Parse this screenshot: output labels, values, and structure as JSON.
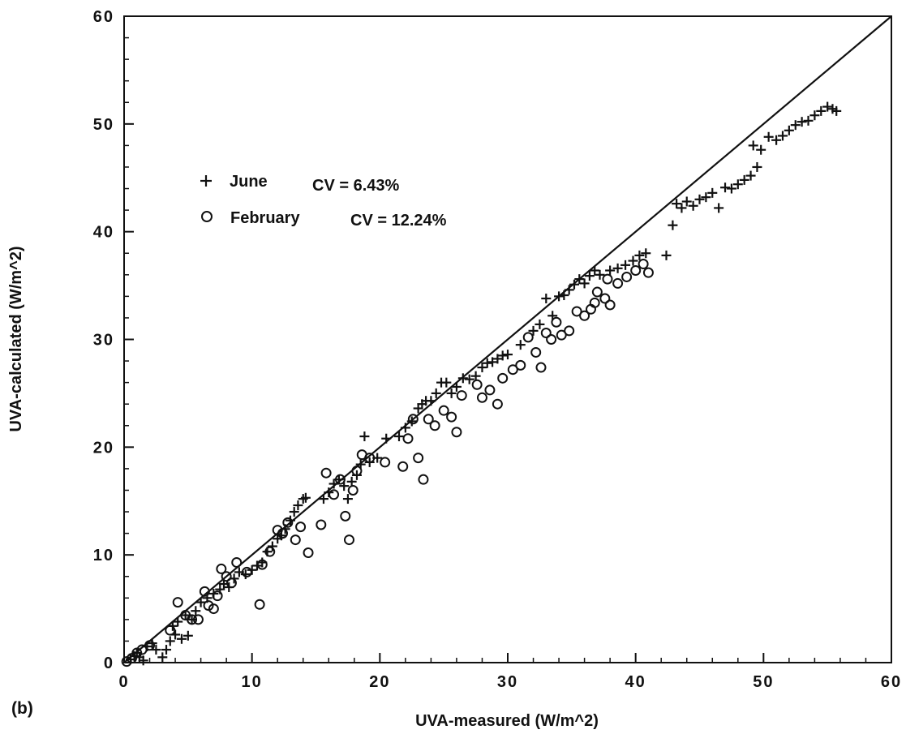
{
  "panel_label": "(b)",
  "chart_data": {
    "type": "scatter",
    "xlabel": "UVA-measured (W/m^2)",
    "ylabel": "UVA-calculated (W/m^2)",
    "xlim": [
      0,
      60
    ],
    "ylim": [
      0,
      60
    ],
    "xticks": [
      "0",
      "10",
      "20",
      "30",
      "40",
      "50",
      "60"
    ],
    "yticks": [
      "0",
      "10",
      "20",
      "30",
      "40",
      "50",
      "60"
    ],
    "reference_line": {
      "type": "1:1",
      "from": [
        0,
        0
      ],
      "to": [
        60,
        60
      ]
    },
    "legend": [
      {
        "marker": "+",
        "label": "June",
        "stat": "CV = 6.43%"
      },
      {
        "marker": "o",
        "label": "February",
        "stat": "CV = 12.24%"
      }
    ],
    "series": [
      {
        "name": "June",
        "marker": "plus",
        "points": [
          [
            0.5,
            0.3
          ],
          [
            0.8,
            0.6
          ],
          [
            1.0,
            0.9
          ],
          [
            1.2,
            0.5
          ],
          [
            1.5,
            0.2
          ],
          [
            1.8,
            1.5
          ],
          [
            2.2,
            1.8
          ],
          [
            2.5,
            1.2
          ],
          [
            3.0,
            0.5
          ],
          [
            3.3,
            1.2
          ],
          [
            3.6,
            2.0
          ],
          [
            3.8,
            3.4
          ],
          [
            4.0,
            2.6
          ],
          [
            4.2,
            3.8
          ],
          [
            4.5,
            2.2
          ],
          [
            4.8,
            4.4
          ],
          [
            5.0,
            2.5
          ],
          [
            5.3,
            4.0
          ],
          [
            5.6,
            4.8
          ],
          [
            6.0,
            5.6
          ],
          [
            6.5,
            6.0
          ],
          [
            7.0,
            6.4
          ],
          [
            7.5,
            6.8
          ],
          [
            7.8,
            7.3
          ],
          [
            8.2,
            7.0
          ],
          [
            8.6,
            7.8
          ],
          [
            9.0,
            8.4
          ],
          [
            9.5,
            8.2
          ],
          [
            10.0,
            8.6
          ],
          [
            10.4,
            9.0
          ],
          [
            10.8,
            9.3
          ],
          [
            11.2,
            10.3
          ],
          [
            11.6,
            10.8
          ],
          [
            12.0,
            11.5
          ],
          [
            12.3,
            11.8
          ],
          [
            12.6,
            12.4
          ],
          [
            13.0,
            13.2
          ],
          [
            13.3,
            14.0
          ],
          [
            13.6,
            14.6
          ],
          [
            14.0,
            15.2
          ],
          [
            14.2,
            15.3
          ],
          [
            15.6,
            15.2
          ],
          [
            16.0,
            15.8
          ],
          [
            16.4,
            16.6
          ],
          [
            16.8,
            17.0
          ],
          [
            17.2,
            16.4
          ],
          [
            17.5,
            15.2
          ],
          [
            17.8,
            16.8
          ],
          [
            18.2,
            17.4
          ],
          [
            18.5,
            18.4
          ],
          [
            18.8,
            21.0
          ],
          [
            19.2,
            18.6
          ],
          [
            19.8,
            19.0
          ],
          [
            20.5,
            20.8
          ],
          [
            21.5,
            21.0
          ],
          [
            22.0,
            21.8
          ],
          [
            22.5,
            22.4
          ],
          [
            23.0,
            23.6
          ],
          [
            23.3,
            24.0
          ],
          [
            23.6,
            24.3
          ],
          [
            24.0,
            24.3
          ],
          [
            24.4,
            25.0
          ],
          [
            24.8,
            26.0
          ],
          [
            25.2,
            26.0
          ],
          [
            25.6,
            25.0
          ],
          [
            26.0,
            25.6
          ],
          [
            26.5,
            26.4
          ],
          [
            27.0,
            26.3
          ],
          [
            27.5,
            26.6
          ],
          [
            28.0,
            27.4
          ],
          [
            28.4,
            27.8
          ],
          [
            28.8,
            27.9
          ],
          [
            29.2,
            28.2
          ],
          [
            29.6,
            28.5
          ],
          [
            30.0,
            28.6
          ],
          [
            31.0,
            29.5
          ],
          [
            32.0,
            30.8
          ],
          [
            32.5,
            31.4
          ],
          [
            33.0,
            33.8
          ],
          [
            33.5,
            32.2
          ],
          [
            34.0,
            34.0
          ],
          [
            34.4,
            34.1
          ],
          [
            34.8,
            34.6
          ],
          [
            35.2,
            35.1
          ],
          [
            35.6,
            35.6
          ],
          [
            36.0,
            35.2
          ],
          [
            36.4,
            35.9
          ],
          [
            36.8,
            36.4
          ],
          [
            37.2,
            36.0
          ],
          [
            38.0,
            36.4
          ],
          [
            38.6,
            36.6
          ],
          [
            39.2,
            36.9
          ],
          [
            39.8,
            37.3
          ],
          [
            40.3,
            37.8
          ],
          [
            40.8,
            38.0
          ],
          [
            42.4,
            37.8
          ],
          [
            42.9,
            40.6
          ],
          [
            43.2,
            42.6
          ],
          [
            43.6,
            42.2
          ],
          [
            44.0,
            42.8
          ],
          [
            44.5,
            42.4
          ],
          [
            45.0,
            43.0
          ],
          [
            45.5,
            43.2
          ],
          [
            46.0,
            43.6
          ],
          [
            46.5,
            42.2
          ],
          [
            47.0,
            44.1
          ],
          [
            47.5,
            44.0
          ],
          [
            48.0,
            44.4
          ],
          [
            48.5,
            44.8
          ],
          [
            49.0,
            45.2
          ],
          [
            49.5,
            46.0
          ],
          [
            49.2,
            48.0
          ],
          [
            49.8,
            47.6
          ],
          [
            50.4,
            48.8
          ],
          [
            51.0,
            48.5
          ],
          [
            51.5,
            48.9
          ],
          [
            52.0,
            49.4
          ],
          [
            52.5,
            49.9
          ],
          [
            53.0,
            50.2
          ],
          [
            53.5,
            50.3
          ],
          [
            54.0,
            50.8
          ],
          [
            54.5,
            51.2
          ],
          [
            55.0,
            51.6
          ],
          [
            55.4,
            51.4
          ],
          [
            55.7,
            51.2
          ]
        ]
      },
      {
        "name": "February",
        "marker": "circle",
        "points": [
          [
            0.2,
            0.1
          ],
          [
            0.6,
            0.4
          ],
          [
            1.0,
            0.9
          ],
          [
            1.4,
            1.2
          ],
          [
            2.0,
            1.6
          ],
          [
            3.6,
            3.0
          ],
          [
            4.2,
            5.6
          ],
          [
            4.8,
            4.4
          ],
          [
            5.3,
            4.0
          ],
          [
            5.8,
            4.0
          ],
          [
            6.3,
            6.6
          ],
          [
            6.6,
            5.3
          ],
          [
            7.0,
            5.0
          ],
          [
            7.3,
            6.2
          ],
          [
            7.6,
            8.7
          ],
          [
            8.0,
            8.0
          ],
          [
            8.4,
            7.4
          ],
          [
            8.8,
            9.3
          ],
          [
            9.6,
            8.4
          ],
          [
            10.6,
            5.4
          ],
          [
            10.8,
            9.1
          ],
          [
            11.4,
            10.3
          ],
          [
            12.0,
            12.3
          ],
          [
            12.4,
            12.0
          ],
          [
            12.8,
            13.0
          ],
          [
            13.4,
            11.4
          ],
          [
            13.8,
            12.6
          ],
          [
            14.4,
            10.2
          ],
          [
            15.4,
            12.8
          ],
          [
            15.8,
            17.6
          ],
          [
            16.4,
            15.6
          ],
          [
            16.9,
            17.0
          ],
          [
            17.3,
            13.6
          ],
          [
            17.6,
            11.4
          ],
          [
            17.9,
            16.0
          ],
          [
            18.2,
            17.8
          ],
          [
            18.6,
            19.3
          ],
          [
            19.2,
            19.0
          ],
          [
            20.4,
            18.6
          ],
          [
            21.8,
            18.2
          ],
          [
            22.2,
            20.8
          ],
          [
            22.6,
            22.6
          ],
          [
            23.0,
            19.0
          ],
          [
            23.4,
            17.0
          ],
          [
            23.8,
            22.6
          ],
          [
            24.3,
            22.0
          ],
          [
            25.0,
            23.4
          ],
          [
            25.6,
            22.8
          ],
          [
            26.0,
            21.4
          ],
          [
            26.4,
            24.8
          ],
          [
            27.6,
            25.8
          ],
          [
            28.0,
            24.6
          ],
          [
            28.6,
            25.3
          ],
          [
            29.2,
            24.0
          ],
          [
            29.6,
            26.4
          ],
          [
            30.4,
            27.2
          ],
          [
            31.0,
            27.6
          ],
          [
            31.6,
            30.2
          ],
          [
            32.2,
            28.8
          ],
          [
            32.6,
            27.4
          ],
          [
            33.0,
            30.6
          ],
          [
            33.4,
            30.0
          ],
          [
            33.8,
            31.6
          ],
          [
            34.2,
            30.4
          ],
          [
            34.8,
            30.8
          ],
          [
            35.4,
            32.6
          ],
          [
            36.0,
            32.2
          ],
          [
            36.5,
            32.8
          ],
          [
            37.0,
            34.4
          ],
          [
            37.6,
            33.8
          ],
          [
            38.0,
            33.2
          ],
          [
            38.6,
            35.2
          ],
          [
            39.3,
            35.8
          ],
          [
            40.0,
            36.4
          ],
          [
            40.6,
            37.0
          ],
          [
            41.0,
            36.2
          ],
          [
            37.8,
            35.6
          ],
          [
            36.8,
            33.4
          ]
        ]
      }
    ]
  }
}
